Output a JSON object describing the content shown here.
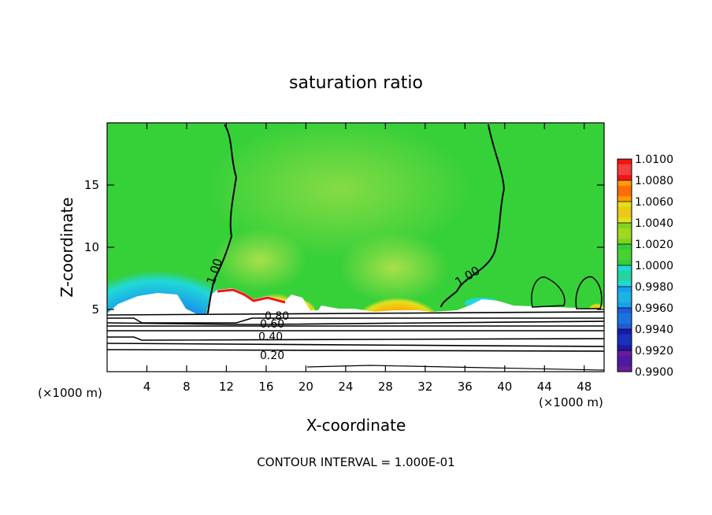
{
  "chart_data": {
    "type": "heatmap",
    "title": "saturation ratio",
    "xlabel": "X-coordinate",
    "ylabel": "Z-coordinate",
    "x_unit_left": "(×1000 m)",
    "x_unit_right": "(×1000 m)",
    "xlim": [
      0,
      50
    ],
    "ylim": [
      0,
      20
    ],
    "x_ticks": [
      4,
      8,
      12,
      16,
      20,
      24,
      28,
      32,
      36,
      40,
      44,
      48
    ],
    "y_ticks": [
      5,
      10,
      15
    ],
    "colorbar": {
      "levels": [
        "0.9900",
        "0.9920",
        "0.9940",
        "0.9960",
        "0.9980",
        "1.0000",
        "1.0020",
        "1.0040",
        "1.0060",
        "1.0080",
        "1.0100"
      ],
      "colors": [
        "#6a1b9a",
        "#1a1aa8",
        "#1e5bd8",
        "#1aa0e8",
        "#20d8d8",
        "#2fcf3a",
        "#7ed321",
        "#e0e020",
        "#ff9d00",
        "#f51414",
        "#f49090"
      ]
    },
    "contour_labels": [
      "1.00",
      "1.00",
      "0.80",
      "0.60",
      "0.40",
      "0.20"
    ],
    "footer": "CONTOUR INTERVAL = 1.000E-01"
  }
}
